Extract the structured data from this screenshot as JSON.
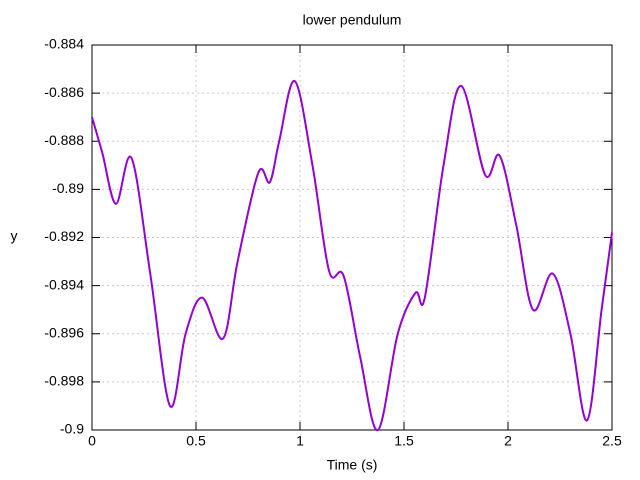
{
  "chart_data": {
    "type": "line",
    "title": "lower pendulum",
    "xlabel": "Time (s)",
    "ylabel": "y",
    "x": [
      0,
      0.05,
      0.115,
      0.19,
      0.28,
      0.375,
      0.45,
      0.53,
      0.63,
      0.7,
      0.8,
      0.855,
      0.9,
      0.975,
      1.06,
      1.14,
      1.21,
      1.29,
      1.375,
      1.47,
      1.555,
      1.6,
      1.69,
      1.775,
      1.89,
      1.96,
      2.04,
      2.12,
      2.215,
      2.3,
      2.38,
      2.45,
      2.5
    ],
    "series": [
      {
        "name": "y",
        "color": "#9400d3",
        "values": [
          -0.887,
          -0.8885,
          -0.8906,
          -0.8887,
          -0.8935,
          -0.899,
          -0.896,
          -0.8945,
          -0.8962,
          -0.893,
          -0.8893,
          -0.8897,
          -0.888,
          -0.8855,
          -0.889,
          -0.8934,
          -0.8936,
          -0.897,
          -0.9,
          -0.896,
          -0.8943,
          -0.8945,
          -0.889,
          -0.8857,
          -0.8894,
          -0.8886,
          -0.8915,
          -0.895,
          -0.8935,
          -0.896,
          -0.8996,
          -0.895,
          -0.8918
        ]
      }
    ],
    "xlim": [
      0,
      2.5
    ],
    "xticks": [
      0,
      0.5,
      1,
      1.5,
      2,
      2.5
    ],
    "ylim": [
      -0.9,
      -0.884
    ],
    "yticks": [
      -0.9,
      -0.898,
      -0.896,
      -0.894,
      -0.892,
      -0.89,
      -0.888,
      -0.886,
      -0.884
    ],
    "grid": true
  }
}
